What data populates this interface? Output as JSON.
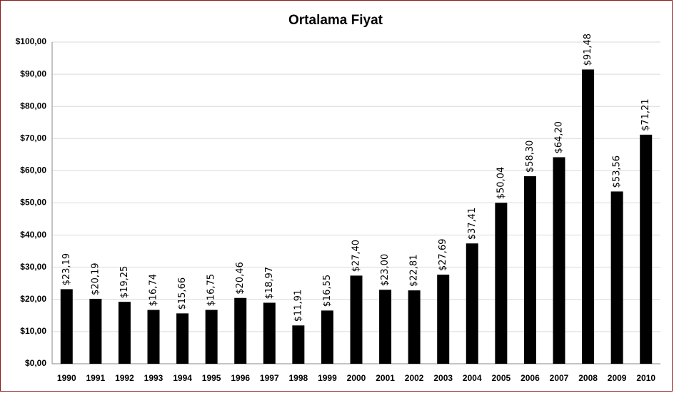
{
  "chart_data": {
    "type": "bar",
    "title": "Ortalama Fiyat",
    "categories": [
      "1990",
      "1991",
      "1992",
      "1993",
      "1994",
      "1995",
      "1996",
      "1997",
      "1998",
      "1999",
      "2000",
      "2001",
      "2002",
      "2003",
      "2004",
      "2005",
      "2006",
      "2007",
      "2008",
      "2009",
      "2010"
    ],
    "values": [
      23.19,
      20.19,
      19.25,
      16.74,
      15.66,
      16.75,
      20.46,
      18.97,
      11.91,
      16.55,
      27.4,
      23.0,
      22.81,
      27.69,
      37.41,
      50.04,
      58.3,
      64.2,
      91.48,
      53.56,
      71.21
    ],
    "value_labels": [
      "$23,19",
      "$20,19",
      "$19,25",
      "$16,74",
      "$15,66",
      "$16,75",
      "$20,46",
      "$18,97",
      "$11,91",
      "$16,55",
      "$27,40",
      "$23,00",
      "$22,81",
      "$27,69",
      "$37,41",
      "$50,04",
      "$58,30",
      "$64,20",
      "$91,48",
      "$53,56",
      "$71,21"
    ],
    "color": "#000000",
    "ylim": [
      0,
      100
    ],
    "yticks": [
      {
        "value": 0,
        "label": "$0,00"
      },
      {
        "value": 10,
        "label": "$10,00"
      },
      {
        "value": 20,
        "label": "$20,00"
      },
      {
        "value": 30,
        "label": "$30,00"
      },
      {
        "value": 40,
        "label": "$40,00"
      },
      {
        "value": 50,
        "label": "$50,00"
      },
      {
        "value": 60,
        "label": "$60,00"
      },
      {
        "value": 70,
        "label": "$70,00"
      },
      {
        "value": 80,
        "label": "$80,00"
      },
      {
        "value": 90,
        "label": "$90,00"
      },
      {
        "value": 100,
        "label": "$100,00"
      }
    ],
    "grid": true
  }
}
